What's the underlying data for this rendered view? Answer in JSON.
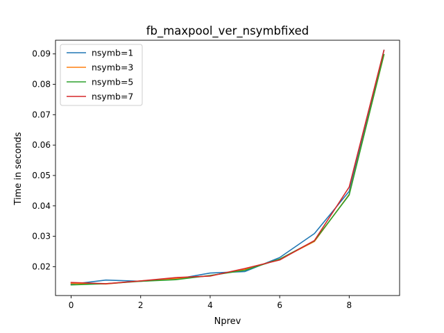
{
  "chart_data": {
    "type": "line",
    "title": "fb_maxpool_ver_nsymbfixed",
    "xlabel": "Nprev",
    "ylabel": "Time in seconds",
    "xlim": [
      -0.45,
      9.45
    ],
    "ylim": [
      0.0105,
      0.0945
    ],
    "xticks": [
      0,
      2,
      4,
      6,
      8
    ],
    "xtick_labels": [
      "0",
      "2",
      "4",
      "6",
      "8"
    ],
    "yticks": [
      0.02,
      0.03,
      0.04,
      0.05,
      0.06,
      0.07,
      0.08,
      0.09
    ],
    "ytick_labels": [
      "0.02",
      "0.03",
      "0.04",
      "0.05",
      "0.06",
      "0.07",
      "0.08",
      "0.09"
    ],
    "grid": false,
    "legend_position": "top-left",
    "x": [
      0,
      1,
      2,
      3,
      4,
      5,
      6,
      7,
      8,
      9
    ],
    "series": [
      {
        "name": "nsymb=1",
        "color": "#1f77b4",
        "values": [
          0.0142,
          0.0156,
          0.0152,
          0.0159,
          0.0179,
          0.0184,
          0.023,
          0.0309,
          0.0448,
          0.0912
        ]
      },
      {
        "name": "nsymb=3",
        "color": "#ff7f0e",
        "values": [
          0.0145,
          0.0143,
          0.0153,
          0.0161,
          0.017,
          0.0191,
          0.0224,
          0.0283,
          0.0438,
          0.0897
        ]
      },
      {
        "name": "nsymb=5",
        "color": "#2ca02c",
        "values": [
          0.014,
          0.0144,
          0.0152,
          0.0157,
          0.0171,
          0.0188,
          0.0225,
          0.0285,
          0.0436,
          0.0898
        ]
      },
      {
        "name": "nsymb=7",
        "color": "#d62728",
        "values": [
          0.0148,
          0.0144,
          0.0153,
          0.0164,
          0.0169,
          0.0194,
          0.0222,
          0.0286,
          0.0462,
          0.0912
        ]
      }
    ]
  }
}
